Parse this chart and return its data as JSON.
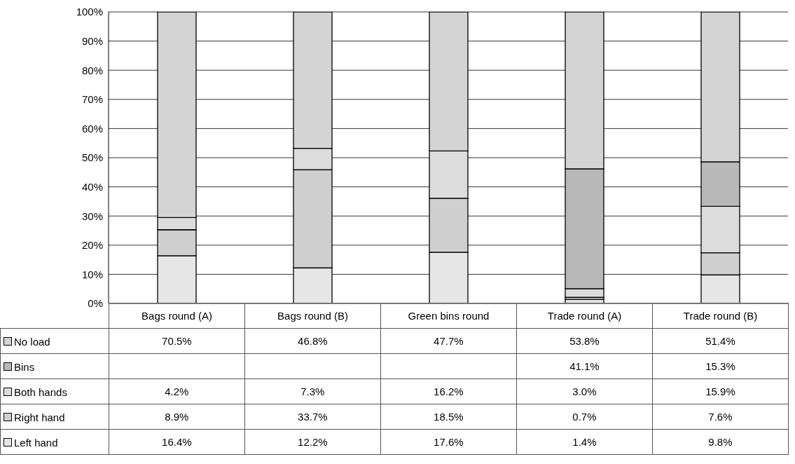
{
  "chart_data": {
    "type": "bar",
    "stacked": true,
    "categories": [
      "Bags round (A)",
      "Bags round (B)",
      "Green bins round",
      "Trade round (A)",
      "Trade round (B)"
    ],
    "series": [
      {
        "name": "Left hand",
        "color": "#e6e6e6",
        "values": [
          16.4,
          12.2,
          17.6,
          1.4,
          9.8
        ],
        "value_labels": [
          "16.4%",
          "12.2%",
          "17.6%",
          "1.4%",
          "9.8%"
        ]
      },
      {
        "name": "Right hand",
        "color": "#cfcfcf",
        "values": [
          8.9,
          33.7,
          18.5,
          0.7,
          7.6
        ],
        "value_labels": [
          "8.9%",
          "33.7%",
          "18.5%",
          "0.7%",
          "7.6%"
        ]
      },
      {
        "name": "Both hands",
        "color": "#dcdcdc",
        "values": [
          4.2,
          7.3,
          16.2,
          3.0,
          15.9
        ],
        "value_labels": [
          "4.2%",
          "7.3%",
          "16.2%",
          "3.0%",
          "15.9%"
        ]
      },
      {
        "name": "Bins",
        "color": "#b8b8b8",
        "values": [
          null,
          null,
          null,
          41.1,
          15.3
        ],
        "value_labels": [
          null,
          null,
          null,
          "41.1%",
          "15.3%"
        ]
      },
      {
        "name": "No load",
        "color": "#d4d4d4",
        "values": [
          70.5,
          46.8,
          47.7,
          53.8,
          51.4
        ],
        "value_labels": [
          "70.5%",
          "46.8%",
          "47.7%",
          "53.8%",
          "51.4%"
        ]
      }
    ],
    "ylim": [
      0,
      100
    ],
    "yticks": [
      {
        "value": 0,
        "label": "0%"
      },
      {
        "value": 10,
        "label": "10%"
      },
      {
        "value": 20,
        "label": "20%"
      },
      {
        "value": 30,
        "label": "30%"
      },
      {
        "value": 40,
        "label": "40%"
      },
      {
        "value": 50,
        "label": "50%"
      },
      {
        "value": 60,
        "label": "60%"
      },
      {
        "value": 70,
        "label": "70%"
      },
      {
        "value": 80,
        "label": "80%"
      },
      {
        "value": 90,
        "label": "90%"
      },
      {
        "value": 100,
        "label": "100%"
      }
    ],
    "grid": "y",
    "legend": "bottom"
  }
}
